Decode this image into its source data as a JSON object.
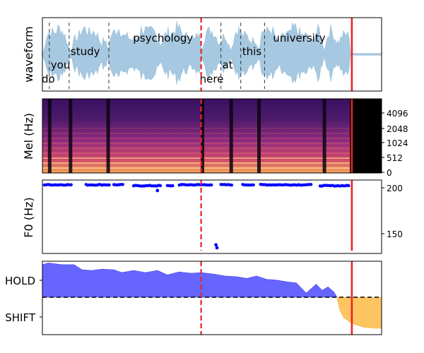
{
  "chart_data": [
    {
      "type": "area",
      "panel": "waveform",
      "ylabel": "waveform",
      "words": [
        {
          "text": "do",
          "start": 0.0,
          "end": 0.35
        },
        {
          "text": "you",
          "start": 0.35,
          "end": 1.35
        },
        {
          "text": "study",
          "start": 1.35,
          "end": 3.35
        },
        {
          "text": "psychology",
          "start": 3.35,
          "end": 8.0
        },
        {
          "text": "here",
          "start": 8.0,
          "end": 9.0
        },
        {
          "text": "at",
          "start": 9.0,
          "end": 10.0
        },
        {
          "text": "this",
          "start": 10.0,
          "end": 11.2
        },
        {
          "text": "university",
          "start": 11.2,
          "end": 15.5
        }
      ],
      "word_boundaries": [
        0.35,
        1.35,
        3.35,
        9.0,
        10.0,
        11.2
      ]
    },
    {
      "type": "heatmap",
      "panel": "mel",
      "ylabel": "Mel (Hz)",
      "yticks": [
        "0",
        "512",
        "1024",
        "2048",
        "4096"
      ],
      "silence_after": 15.5
    },
    {
      "type": "scatter",
      "panel": "f0",
      "ylabel": "F0 (Hz)",
      "yticks": [
        "150",
        "200"
      ],
      "ylim": [
        128,
        205
      ],
      "point_color": "#0000ff",
      "segments": [
        {
          "start": 0.1,
          "end": 1.5,
          "value": 200
        },
        {
          "start": 2.2,
          "end": 3.4,
          "value": 200
        },
        {
          "start": 3.6,
          "end": 4.1,
          "value": 200
        },
        {
          "start": 4.6,
          "end": 6.0,
          "value": 199
        },
        {
          "start": 6.3,
          "end": 6.6,
          "value": 199
        },
        {
          "start": 6.9,
          "end": 8.6,
          "value": 200
        },
        {
          "start": 9.0,
          "end": 9.6,
          "value": 200
        },
        {
          "start": 10.1,
          "end": 10.7,
          "value": 200
        },
        {
          "start": 11.0,
          "end": 12.0,
          "value": 200
        },
        {
          "start": 12.1,
          "end": 13.6,
          "value": 200
        },
        {
          "start": 14.0,
          "end": 15.5,
          "value": 199
        }
      ],
      "outliers": [
        {
          "x": 5.8,
          "y": 194
        },
        {
          "x": 8.75,
          "y": 137
        },
        {
          "x": 8.8,
          "y": 134
        }
      ]
    },
    {
      "type": "area",
      "panel": "turn",
      "yticks": [
        "HOLD",
        "SHIFT"
      ],
      "threshold": 0,
      "hold_color": "#6666ff",
      "shift_color": "#ffc462",
      "hold": [
        {
          "t": 0.0,
          "v": 0.95
        },
        {
          "t": 0.3,
          "v": 1.0
        },
        {
          "t": 1.0,
          "v": 0.95
        },
        {
          "t": 1.6,
          "v": 0.95
        },
        {
          "t": 2.0,
          "v": 0.8
        },
        {
          "t": 2.5,
          "v": 0.78
        },
        {
          "t": 3.0,
          "v": 0.82
        },
        {
          "t": 3.6,
          "v": 0.8
        },
        {
          "t": 4.0,
          "v": 0.72
        },
        {
          "t": 4.6,
          "v": 0.78
        },
        {
          "t": 5.2,
          "v": 0.72
        },
        {
          "t": 5.8,
          "v": 0.78
        },
        {
          "t": 6.3,
          "v": 0.65
        },
        {
          "t": 6.9,
          "v": 0.74
        },
        {
          "t": 7.5,
          "v": 0.7
        },
        {
          "t": 8.0,
          "v": 0.72
        },
        {
          "t": 8.6,
          "v": 0.68
        },
        {
          "t": 9.2,
          "v": 0.62
        },
        {
          "t": 9.8,
          "v": 0.6
        },
        {
          "t": 10.3,
          "v": 0.55
        },
        {
          "t": 10.8,
          "v": 0.62
        },
        {
          "t": 11.3,
          "v": 0.52
        },
        {
          "t": 11.8,
          "v": 0.5
        },
        {
          "t": 12.3,
          "v": 0.45
        },
        {
          "t": 12.8,
          "v": 0.42
        },
        {
          "t": 13.3,
          "v": 0.12
        },
        {
          "t": 13.8,
          "v": 0.38
        },
        {
          "t": 14.1,
          "v": 0.2
        },
        {
          "t": 14.4,
          "v": 0.3
        },
        {
          "t": 14.7,
          "v": 0.15
        },
        {
          "t": 14.85,
          "v": 0.0
        }
      ],
      "shift": [
        {
          "t": 14.85,
          "v": 0.0
        },
        {
          "t": 15.0,
          "v": -0.35
        },
        {
          "t": 15.2,
          "v": -0.55
        },
        {
          "t": 15.6,
          "v": -0.7
        },
        {
          "t": 16.2,
          "v": -0.8
        },
        {
          "t": 16.8,
          "v": -0.83
        },
        {
          "t": 17.1,
          "v": -0.83
        }
      ],
      "ylim": [
        -1.0,
        1.05
      ]
    }
  ],
  "time_range": [
    0,
    17.1
  ],
  "markers": [
    {
      "t": 8.0,
      "style": "dashed",
      "color": "#ee2222"
    },
    {
      "t": 15.6,
      "style": "solid",
      "color": "#ee2222"
    }
  ]
}
